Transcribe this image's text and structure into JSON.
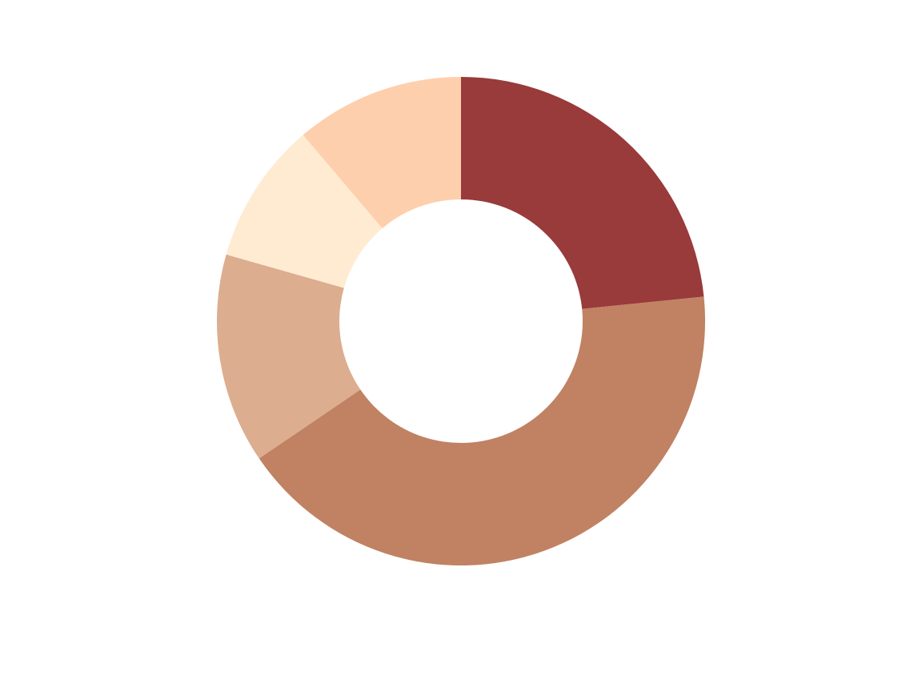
{
  "chart_data": {
    "type": "donut",
    "values": [
      23.4,
      42.1,
      13.9,
      9.4,
      11.2
    ],
    "colors": [
      "#993a3b",
      "#c08262",
      "#dcad8e",
      "#ffebd2",
      "#fecfad"
    ]
  }
}
